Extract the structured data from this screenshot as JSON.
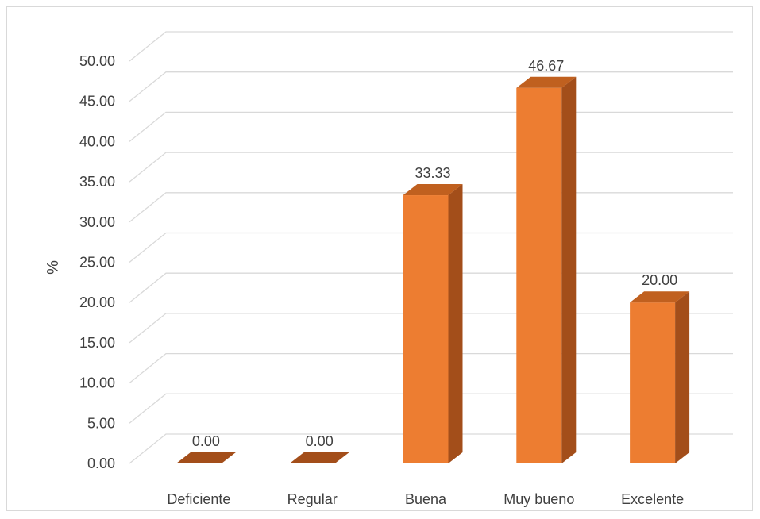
{
  "chart_data": {
    "type": "bar",
    "style": "3d-column",
    "categories": [
      "Deficiente",
      "Regular",
      "Buena",
      "Muy bueno",
      "Excelente"
    ],
    "values": [
      0.0,
      0.0,
      33.33,
      46.67,
      20.0
    ],
    "value_labels": [
      "0.00",
      "0.00",
      "33.33",
      "46.67",
      "20.00"
    ],
    "ylabel": "%",
    "xlabel": "",
    "ylim": [
      0,
      50
    ],
    "ytick_step": 5,
    "ytick_labels": [
      "0.00",
      "5.00",
      "10.00",
      "15.00",
      "20.00",
      "25.00",
      "30.00",
      "35.00",
      "40.00",
      "45.00",
      "50.00"
    ],
    "grid": true,
    "legend": "none",
    "colors": {
      "bar_front": "#ed7d31",
      "bar_side": "#a34e1a",
      "bar_top": "#c0601f",
      "grid": "#d9d9d9",
      "text": "#404040"
    }
  }
}
